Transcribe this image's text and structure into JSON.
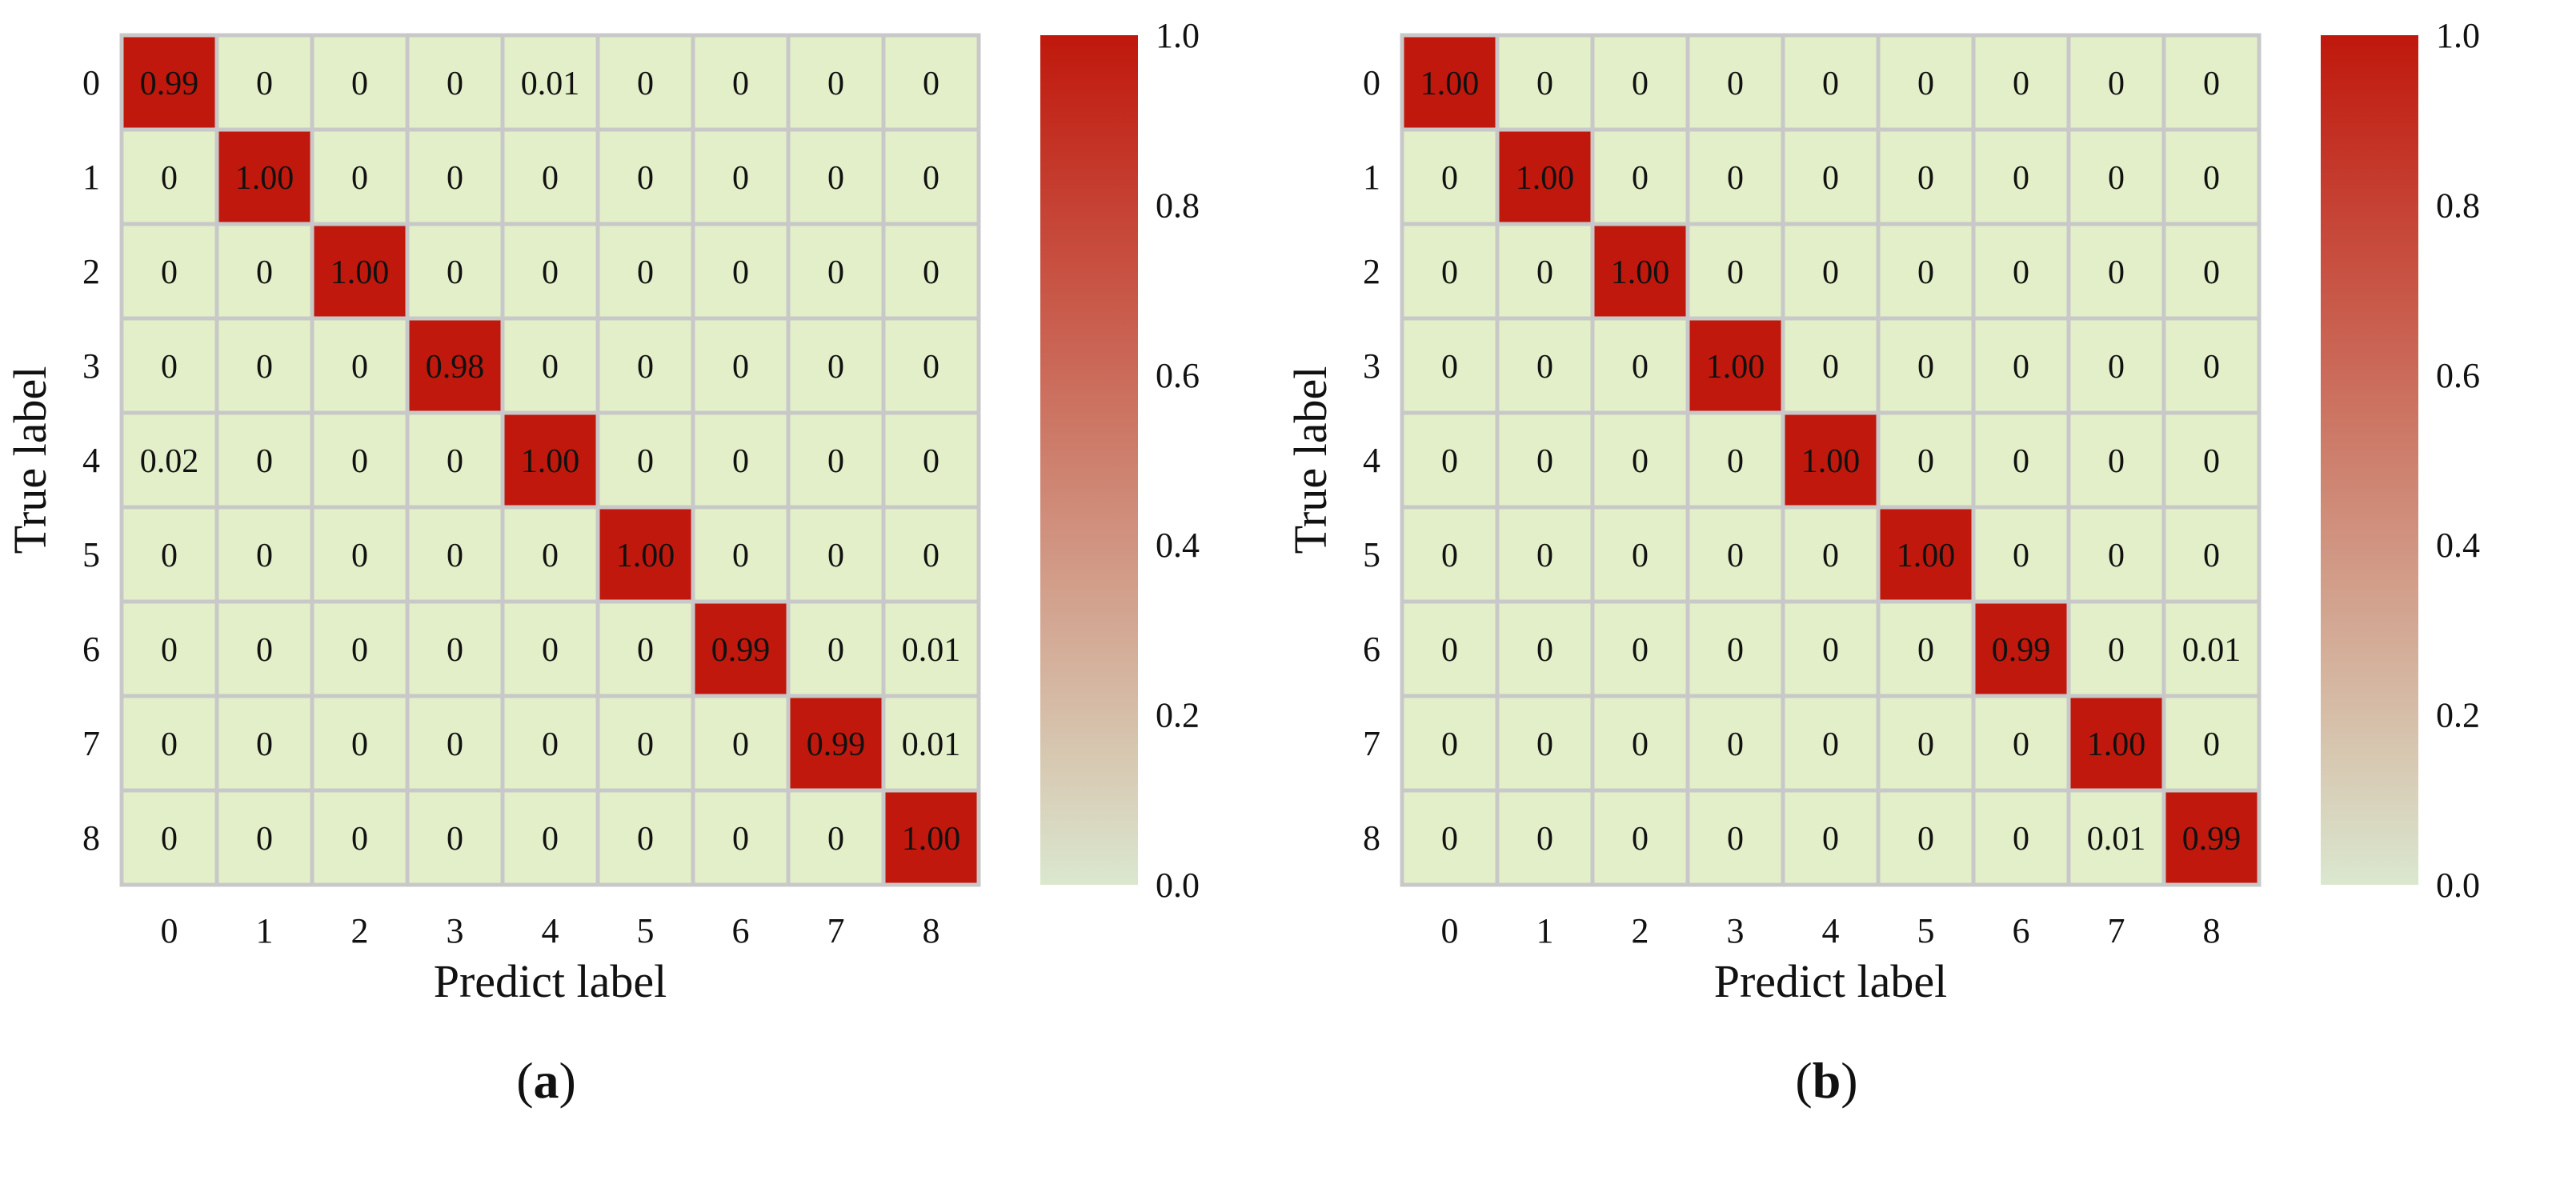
{
  "colors": {
    "low": "#dbe7cf",
    "cell_low": "#e3efc8",
    "high": "#c0180c",
    "grid": "#c8c8c8"
  },
  "chart_data": [
    {
      "type": "heatmap",
      "panel_label": "a",
      "xlabel": "Predict label",
      "ylabel": "True label",
      "x_categories": [
        "0",
        "1",
        "2",
        "3",
        "4",
        "5",
        "6",
        "7",
        "8"
      ],
      "y_categories": [
        "0",
        "1",
        "2",
        "3",
        "4",
        "5",
        "6",
        "7",
        "8"
      ],
      "values": [
        [
          0.99,
          0,
          0,
          0,
          0.01,
          0,
          0,
          0,
          0
        ],
        [
          0,
          1.0,
          0,
          0,
          0,
          0,
          0,
          0,
          0
        ],
        [
          0,
          0,
          1.0,
          0,
          0,
          0,
          0,
          0,
          0
        ],
        [
          0,
          0,
          0,
          0.98,
          0,
          0,
          0,
          0,
          0
        ],
        [
          0.02,
          0,
          0,
          0,
          1.0,
          0,
          0,
          0,
          0
        ],
        [
          0,
          0,
          0,
          0,
          0,
          1.0,
          0,
          0,
          0
        ],
        [
          0,
          0,
          0,
          0,
          0,
          0,
          0.99,
          0,
          0.01
        ],
        [
          0,
          0,
          0,
          0,
          0,
          0,
          0,
          0.99,
          0.01
        ],
        [
          0,
          0,
          0,
          0,
          0,
          0,
          0,
          0,
          1.0
        ]
      ],
      "cell_labels": [
        [
          "0.99",
          "0",
          "0",
          "0",
          "0.01",
          "0",
          "0",
          "0",
          "0"
        ],
        [
          "0",
          "1.00",
          "0",
          "0",
          "0",
          "0",
          "0",
          "0",
          "0"
        ],
        [
          "0",
          "0",
          "1.00",
          "0",
          "0",
          "0",
          "0",
          "0",
          "0"
        ],
        [
          "0",
          "0",
          "0",
          "0.98",
          "0",
          "0",
          "0",
          "0",
          "0"
        ],
        [
          "0.02",
          "0",
          "0",
          "0",
          "1.00",
          "0",
          "0",
          "0",
          "0"
        ],
        [
          "0",
          "0",
          "0",
          "0",
          "0",
          "1.00",
          "0",
          "0",
          "0"
        ],
        [
          "0",
          "0",
          "0",
          "0",
          "0",
          "0",
          "0.99",
          "0",
          "0.01"
        ],
        [
          "0",
          "0",
          "0",
          "0",
          "0",
          "0",
          "0",
          "0.99",
          "0.01"
        ],
        [
          "0",
          "0",
          "0",
          "0",
          "0",
          "0",
          "0",
          "0",
          "1.00"
        ]
      ],
      "colorbar": {
        "range": [
          0.0,
          1.0
        ],
        "ticks": [
          "0.0",
          "0.2",
          "0.4",
          "0.6",
          "0.8",
          "1.0"
        ]
      }
    },
    {
      "type": "heatmap",
      "panel_label": "b",
      "xlabel": "Predict label",
      "ylabel": "True label",
      "x_categories": [
        "0",
        "1",
        "2",
        "3",
        "4",
        "5",
        "6",
        "7",
        "8"
      ],
      "y_categories": [
        "0",
        "1",
        "2",
        "3",
        "4",
        "5",
        "6",
        "7",
        "8"
      ],
      "values": [
        [
          1.0,
          0,
          0,
          0,
          0,
          0,
          0,
          0,
          0
        ],
        [
          0,
          1.0,
          0,
          0,
          0,
          0,
          0,
          0,
          0
        ],
        [
          0,
          0,
          1.0,
          0,
          0,
          0,
          0,
          0,
          0
        ],
        [
          0,
          0,
          0,
          1.0,
          0,
          0,
          0,
          0,
          0
        ],
        [
          0,
          0,
          0,
          0,
          1.0,
          0,
          0,
          0,
          0
        ],
        [
          0,
          0,
          0,
          0,
          0,
          1.0,
          0,
          0,
          0
        ],
        [
          0,
          0,
          0,
          0,
          0,
          0,
          0.99,
          0,
          0.01
        ],
        [
          0,
          0,
          0,
          0,
          0,
          0,
          0,
          1.0,
          0
        ],
        [
          0,
          0,
          0,
          0,
          0,
          0,
          0,
          0.01,
          0.99
        ]
      ],
      "cell_labels": [
        [
          "1.00",
          "0",
          "0",
          "0",
          "0",
          "0",
          "0",
          "0",
          "0"
        ],
        [
          "0",
          "1.00",
          "0",
          "0",
          "0",
          "0",
          "0",
          "0",
          "0"
        ],
        [
          "0",
          "0",
          "1.00",
          "0",
          "0",
          "0",
          "0",
          "0",
          "0"
        ],
        [
          "0",
          "0",
          "0",
          "1.00",
          "0",
          "0",
          "0",
          "0",
          "0"
        ],
        [
          "0",
          "0",
          "0",
          "0",
          "1.00",
          "0",
          "0",
          "0",
          "0"
        ],
        [
          "0",
          "0",
          "0",
          "0",
          "0",
          "1.00",
          "0",
          "0",
          "0"
        ],
        [
          "0",
          "0",
          "0",
          "0",
          "0",
          "0",
          "0.99",
          "0",
          "0.01"
        ],
        [
          "0",
          "0",
          "0",
          "0",
          "0",
          "0",
          "0",
          "1.00",
          "0"
        ],
        [
          "0",
          "0",
          "0",
          "0",
          "0",
          "0",
          "0",
          "0.01",
          "0.99"
        ]
      ],
      "colorbar": {
        "range": [
          0.0,
          1.0
        ],
        "ticks": [
          "0.0",
          "0.2",
          "0.4",
          "0.6",
          "0.8",
          "1.0"
        ]
      }
    }
  ]
}
